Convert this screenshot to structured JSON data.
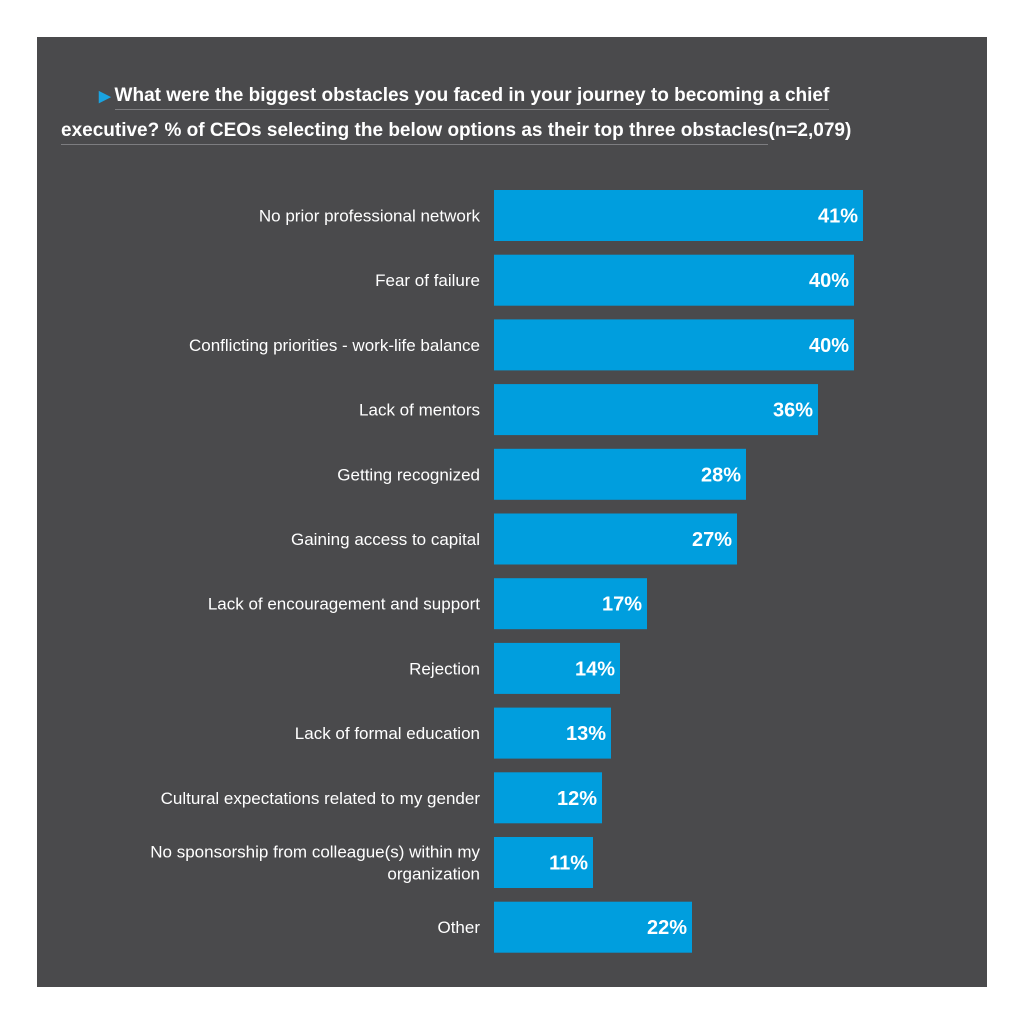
{
  "title_lines": [
    "What were the biggest obstacles you faced in your journey to becoming a chief",
    "executive? % of CEOs selecting the below options as their top three obstacles",
    "(n=2,079)"
  ],
  "colors": {
    "background": "#4a4a4c",
    "bar": "#009ede",
    "text": "#ffffff",
    "accent_triangle": "#1aa3e0"
  },
  "chart_data": {
    "type": "bar",
    "orientation": "horizontal",
    "title": "What were the biggest obstacles you faced in your journey to becoming a chief executive? % of CEOs selecting the below options as their top three obstacles (n=2,079)",
    "categories": [
      "No prior professional network",
      "Fear of failure",
      "Conflicting priorities - work-life balance",
      "Lack of mentors",
      "Getting recognized",
      "Gaining access to capital",
      "Lack of encouragement and support",
      "Rejection",
      "Lack of formal education",
      "Cultural expectations related to my gender",
      "No sponsorship from colleague(s) within my organization",
      "Other"
    ],
    "values": [
      41,
      40,
      40,
      36,
      28,
      27,
      17,
      14,
      13,
      12,
      11,
      22
    ],
    "value_labels": [
      "41%",
      "40%",
      "40%",
      "36%",
      "28%",
      "27%",
      "17%",
      "14%",
      "13%",
      "12%",
      "11%",
      "22%"
    ],
    "category_lines": [
      [
        "No prior professional network"
      ],
      [
        "Fear of failure"
      ],
      [
        "Conflicting priorities - work-life balance"
      ],
      [
        "Lack of mentors"
      ],
      [
        "Getting recognized"
      ],
      [
        "Gaining access to capital"
      ],
      [
        "Lack of encouragement and support"
      ],
      [
        "Rejection"
      ],
      [
        "Lack of formal education"
      ],
      [
        "Cultural expectations related to my gender"
      ],
      [
        "No sponsorship from colleague(s) within my",
        "organization"
      ],
      [
        "Other"
      ]
    ],
    "xlim": [
      0,
      41
    ],
    "grid": false,
    "legend": "none"
  }
}
